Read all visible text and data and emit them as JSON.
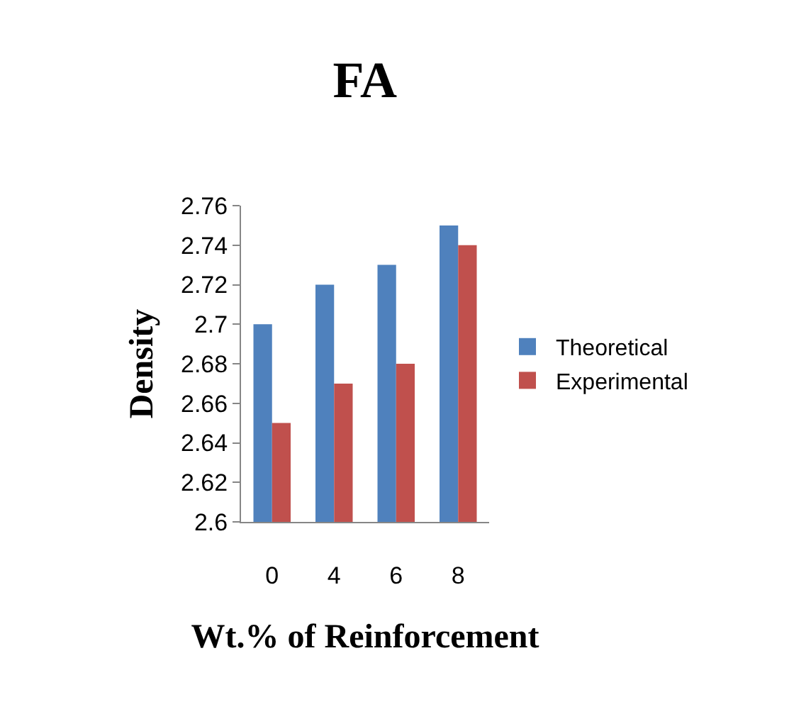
{
  "chart_data": {
    "type": "bar",
    "title": "FA",
    "xlabel": "Wt.% of Reinforcement",
    "ylabel": "Density",
    "categories": [
      "0",
      "4",
      "6",
      "8"
    ],
    "series": [
      {
        "name": "Theoretical",
        "color": "#4f81bd",
        "values": [
          2.7,
          2.72,
          2.73,
          2.75
        ]
      },
      {
        "name": "Experimental",
        "color": "#c0504d",
        "values": [
          2.65,
          2.67,
          2.68,
          2.74
        ]
      }
    ],
    "ylim": [
      2.6,
      2.76
    ],
    "yticks": [
      2.6,
      2.62,
      2.64,
      2.66,
      2.68,
      {
        "value": 2.7,
        "label": "2.7"
      },
      2.72,
      2.74,
      2.76
    ],
    "legend": "right"
  }
}
